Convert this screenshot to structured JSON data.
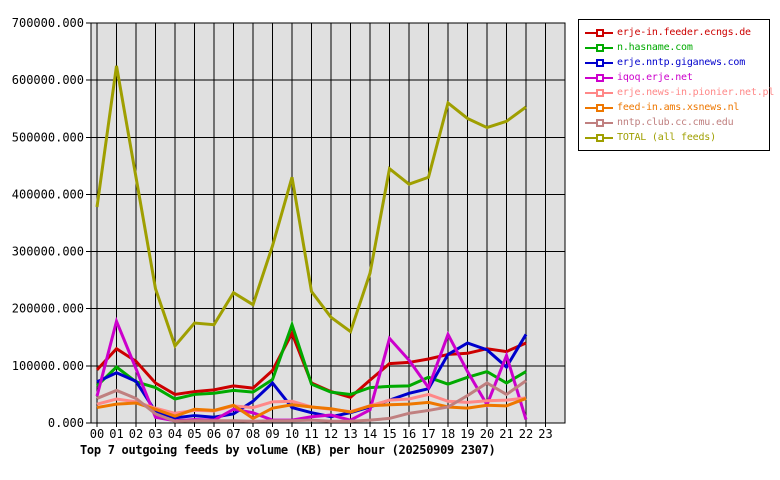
{
  "page": {
    "background": "#ffffff",
    "plot_background": "#e0e0e0",
    "grid_color": "#000000",
    "axis_color": "#000000"
  },
  "chart_data": {
    "type": "line",
    "title": "Top 7 outgoing feeds by volume (KB) per hour (20250909 2307)",
    "xlabel": "",
    "ylabel": "",
    "ylim": [
      0,
      700000
    ],
    "y_tick_step": 100000,
    "grid": true,
    "legend_position": "top-right",
    "x_tick_labels": [
      "00",
      "01",
      "02",
      "03",
      "04",
      "05",
      "06",
      "07",
      "08",
      "09",
      "10",
      "11",
      "12",
      "13",
      "14",
      "15",
      "16",
      "17",
      "18",
      "19",
      "20",
      "21",
      "22",
      "23"
    ],
    "y_tick_labels": [
      "0.000",
      "100000.000",
      "200000.000",
      "300000.000",
      "400000.000",
      "500000.000",
      "600000.000",
      "700000.000"
    ],
    "x_hours_with_data": [
      "00",
      "01",
      "02",
      "03",
      "04",
      "05",
      "06",
      "07",
      "08",
      "09",
      "10",
      "11",
      "12",
      "13",
      "14",
      "15",
      "16",
      "17",
      "18",
      "19",
      "20",
      "21",
      "22"
    ],
    "series": [
      {
        "name": "erje-in.feeder.ecngs.de",
        "color": "#cc0000",
        "marker": "open-square",
        "values": [
          93000,
          130000,
          108000,
          70000,
          50000,
          55000,
          58000,
          65000,
          61000,
          92000,
          157000,
          70000,
          55000,
          45000,
          75000,
          104000,
          106000,
          112000,
          120000,
          122000,
          130000,
          125000,
          140000
        ]
      },
      {
        "name": "n.hasname.com",
        "color": "#00aa00",
        "marker": "open-square",
        "values": [
          65000,
          98000,
          72000,
          62000,
          42000,
          50000,
          52000,
          57000,
          54000,
          76000,
          172000,
          68000,
          54000,
          50000,
          62000,
          64000,
          65000,
          80000,
          68000,
          80000,
          90000,
          70000,
          90000
        ]
      },
      {
        "name": "erje.nntp.giganews.com",
        "color": "#0000cc",
        "marker": "open-square",
        "values": [
          72000,
          88000,
          73000,
          20000,
          9000,
          13000,
          10000,
          16000,
          38000,
          70000,
          27000,
          18000,
          11000,
          18000,
          28000,
          40000,
          52000,
          60000,
          120000,
          140000,
          128000,
          98000,
          155000
        ]
      },
      {
        "name": "iqoq.erje.net",
        "color": "#cc00cc",
        "marker": "open-square",
        "values": [
          47000,
          178000,
          95000,
          10000,
          4000,
          6000,
          5000,
          24000,
          18000,
          5000,
          5000,
          11000,
          14000,
          5000,
          23000,
          148000,
          110000,
          62000,
          155000,
          90000,
          32000,
          118000,
          6000
        ]
      },
      {
        "name": "erje.news-in.pionier.net.pl",
        "color": "#ff8888",
        "marker": "open-square",
        "values": [
          33000,
          42000,
          37000,
          26000,
          17000,
          22000,
          21000,
          30000,
          27000,
          37000,
          38000,
          28000,
          24000,
          20000,
          30000,
          40000,
          42000,
          50000,
          38000,
          36000,
          39000,
          40000,
          44000
        ]
      },
      {
        "name": "feed-in.ams.xsnews.nl",
        "color": "#ee7700",
        "marker": "open-square",
        "values": [
          27000,
          33000,
          35000,
          24000,
          12000,
          24000,
          22000,
          31000,
          8000,
          26000,
          32000,
          28000,
          25000,
          19000,
          30000,
          32000,
          33000,
          36000,
          28000,
          26000,
          31000,
          30000,
          43000
        ]
      },
      {
        "name": "nntp.club.cc.cmu.edu",
        "color": "#c08080",
        "marker": "open-square",
        "values": [
          43000,
          57000,
          43000,
          16000,
          3000,
          4000,
          4000,
          4000,
          3000,
          4000,
          4000,
          5000,
          3000,
          3000,
          5000,
          8000,
          17000,
          22000,
          28000,
          48000,
          70000,
          50000,
          74000
        ]
      },
      {
        "name": "TOTAL (all feeds)",
        "color": "#9f9f00",
        "marker": "open-square",
        "values": [
          378000,
          625000,
          430000,
          235000,
          135000,
          175000,
          172000,
          228000,
          207000,
          310000,
          430000,
          230000,
          185000,
          160000,
          262000,
          445000,
          418000,
          430000,
          560000,
          533000,
          517000,
          528000,
          553000
        ]
      }
    ]
  }
}
